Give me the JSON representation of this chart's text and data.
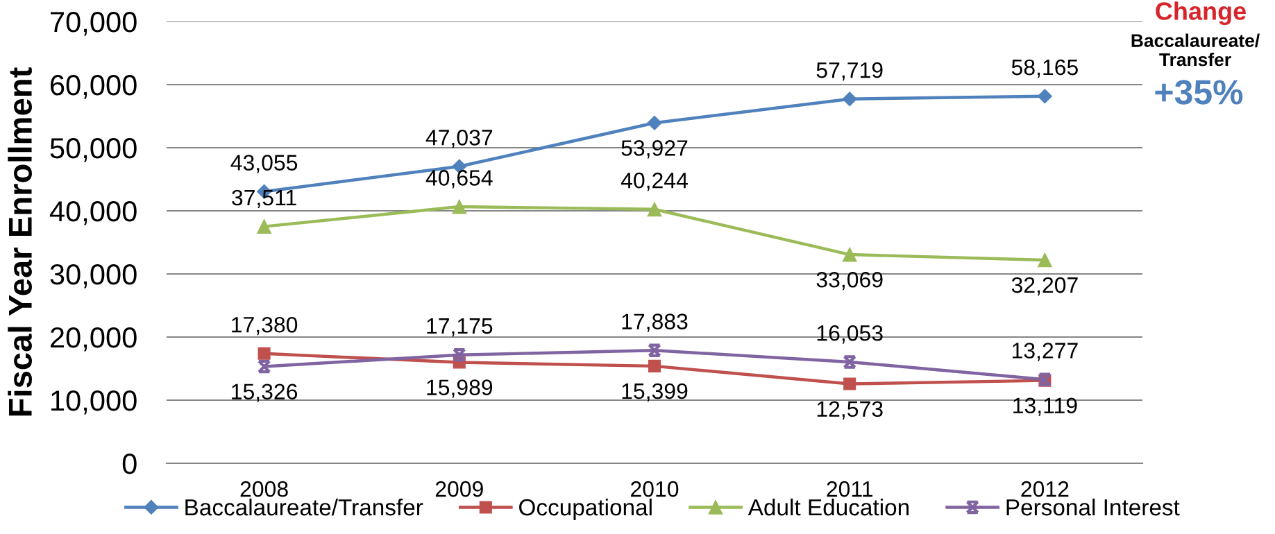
{
  "chart_data": {
    "type": "line",
    "ylabel": "Fiscal Year Enrollment",
    "categories": [
      "2008",
      "2009",
      "2010",
      "2011",
      "2012"
    ],
    "series": [
      {
        "name": "Baccalaureate/Transfer",
        "color": "#4f81bd",
        "marker": "diamond",
        "values": [
          43055,
          47037,
          53927,
          57719,
          58165
        ],
        "value_labels": [
          "43,055",
          "47,037",
          "53,927",
          "57,719",
          "58,165"
        ]
      },
      {
        "name": "Occupational",
        "color": "#c0504d",
        "marker": "square",
        "values": [
          17380,
          15989,
          15399,
          12573,
          13119
        ],
        "value_labels": [
          "17,380",
          "15,989",
          "15,399",
          "12,573",
          "13,119"
        ]
      },
      {
        "name": "Adult Education",
        "color": "#9bbb59",
        "marker": "triangle",
        "values": [
          37511,
          40654,
          40244,
          33069,
          32207
        ],
        "value_labels": [
          "37,511",
          "40,654",
          "40,244",
          "33,069",
          "32,207"
        ]
      },
      {
        "name": "Personal Interest",
        "color": "#8064a2",
        "marker": "cross",
        "values": [
          15326,
          17175,
          17883,
          16053,
          13277
        ],
        "value_labels": [
          "15,326",
          "17,175",
          "17,883",
          "16,053",
          "13,277"
        ]
      }
    ],
    "ylim": [
      0,
      70000
    ],
    "yticks": [
      0,
      {
        "value": 10000,
        "label": "10,000"
      },
      {
        "value": 20000,
        "label": "20,000"
      },
      {
        "value": 30000,
        "label": "30,000"
      },
      {
        "value": 40000,
        "label": "40,000"
      },
      {
        "value": 50000,
        "label": "50,000"
      },
      {
        "value": 60000,
        "label": "60,000"
      },
      {
        "value": 70000,
        "label": "70,000"
      }
    ],
    "grid": "y",
    "legend": "bottom",
    "annotations": [
      "Change",
      "Baccalaureate/\nTransfer",
      "+35%"
    ]
  }
}
